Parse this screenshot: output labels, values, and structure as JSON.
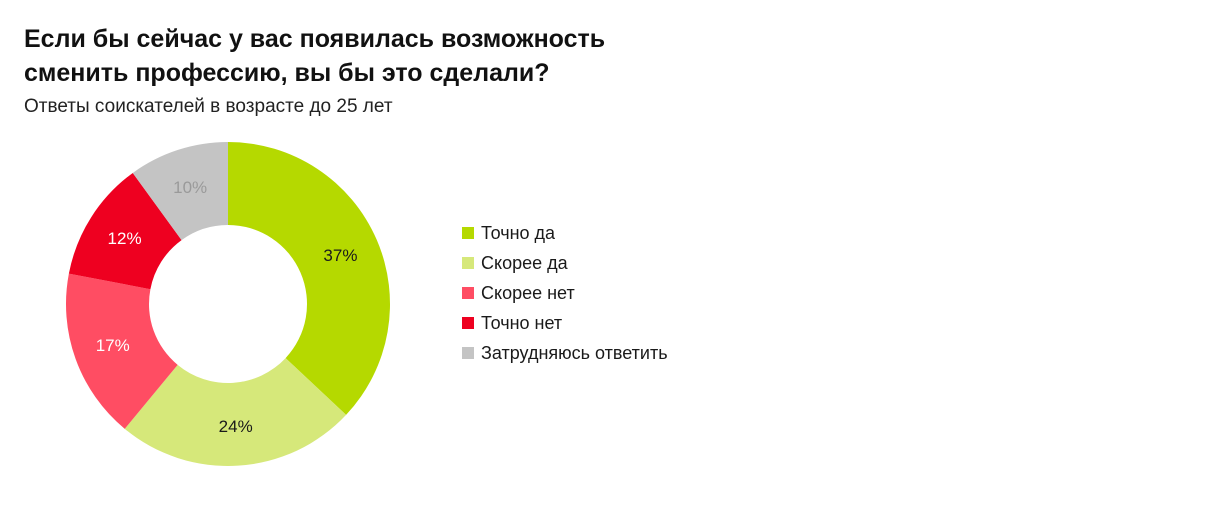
{
  "chart_data": {
    "type": "pie",
    "variant": "donut",
    "title": "Если бы сейчас у вас появилась возможность сменить профессию, вы бы это сделали?",
    "subtitle": "Ответы соискателей в возрасте до 25 лет",
    "legend_position": "right",
    "slices": [
      {
        "label": "Точно да",
        "value": 37,
        "display": "37%",
        "color": "#b5d900",
        "label_color": "#1a1a1a"
      },
      {
        "label": "Скорее да",
        "value": 24,
        "display": "24%",
        "color": "#d6e87a",
        "label_color": "#1a1a1a"
      },
      {
        "label": "Скорее нет",
        "value": 17,
        "display": "17%",
        "color": "#ff4d63",
        "label_color": "#ffffff"
      },
      {
        "label": "Точно нет",
        "value": 12,
        "display": "12%",
        "color": "#ee0020",
        "label_color": "#ffffff"
      },
      {
        "label": "Затрудняюсь ответить",
        "value": 10,
        "display": "10%",
        "color": "#c4c4c4",
        "label_color": "#9a9a9a"
      }
    ]
  }
}
